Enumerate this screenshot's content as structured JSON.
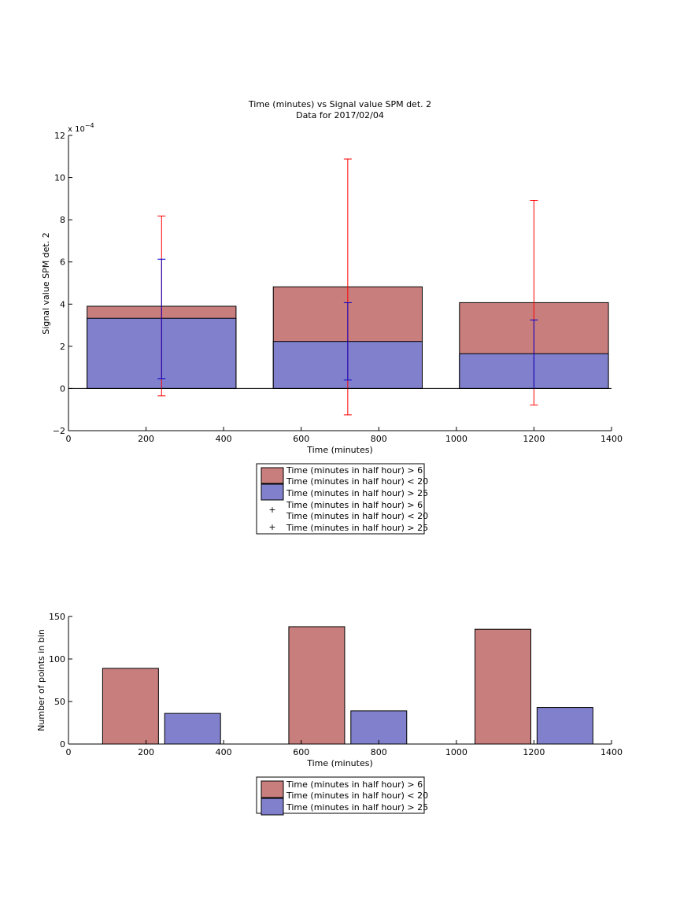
{
  "colors": {
    "red_fill": "#c97e7e",
    "blue_fill": "#8080cc",
    "red_err": "#ff0000",
    "blue_err": "#0000cc",
    "axis": "#000000"
  },
  "chart_data": [
    {
      "type": "bar",
      "title": "Time (minutes) vs Signal value SPM det. 2",
      "subtitle": "Data for 2017/02/04",
      "xlabel": "Time (minutes)",
      "ylabel": "Signal value SPM det. 2",
      "y_exponent_label": "x 10",
      "y_exponent_power": "−4",
      "xlim": [
        0,
        1400
      ],
      "ylim": [
        -2,
        12
      ],
      "xticks": [
        "0",
        "200",
        "400",
        "600",
        "800",
        "1000",
        "1200",
        "1400"
      ],
      "yticks": [
        "−2",
        "0",
        "2",
        "4",
        "6",
        "8",
        "10",
        "12"
      ],
      "bars": {
        "x_centers": [
          240,
          720,
          1200
        ],
        "half_width": 192,
        "series": [
          {
            "name": "Time (minutes in half hour) > 6\nTime (minutes in half hour) < 20",
            "values": [
              3.9,
              4.82,
              4.07
            ]
          },
          {
            "name": "Time (minutes in half hour) > 25",
            "values": [
              3.33,
              2.23,
              1.65
            ]
          }
        ]
      },
      "error_bars": [
        {
          "name": "Time (minutes in half hour) > 6\nTime (minutes in half hour) < 20",
          "x": [
            240,
            720,
            1200
          ],
          "y": [
            3.9,
            4.82,
            4.07
          ],
          "low": [
            -0.35,
            -1.25,
            -0.78
          ],
          "high": [
            8.18,
            10.88,
            8.92
          ]
        },
        {
          "name": "Time (minutes in half hour) > 25",
          "x": [
            240,
            720,
            1200
          ],
          "y": [
            3.33,
            2.23,
            1.65
          ],
          "low": [
            0.47,
            0.4,
            0.0
          ],
          "high": [
            6.13,
            4.07,
            3.25
          ]
        }
      ],
      "legend": {
        "placement": "below",
        "entries": [
          "Time (minutes in half hour) > 6",
          "Time (minutes in half hour) < 20",
          "Time (minutes in half hour) > 25",
          "Time (minutes in half hour) > 6",
          "Time (minutes in half hour) < 20",
          "Time (minutes in half hour) > 25"
        ]
      }
    },
    {
      "type": "bar",
      "xlabel": "Time (minutes)",
      "ylabel": "Number of points in bin",
      "xlim": [
        0,
        1400
      ],
      "ylim": [
        0,
        150
      ],
      "xticks": [
        "0",
        "200",
        "400",
        "600",
        "800",
        "1000",
        "1200",
        "1400"
      ],
      "yticks": [
        "0",
        "50",
        "100",
        "150"
      ],
      "bars": {
        "half_width": 72,
        "series": [
          {
            "name": "Time (minutes in half hour) > 6\nTime (minutes in half hour) < 20",
            "x_centers": [
              160,
              640,
              1120
            ],
            "values": [
              89,
              138,
              135
            ]
          },
          {
            "name": "Time (minutes in half hour) > 25",
            "x_centers": [
              320,
              800,
              1280
            ],
            "values": [
              36,
              39,
              43
            ]
          }
        ]
      },
      "legend": {
        "placement": "below",
        "entries": [
          "Time (minutes in half hour) > 6",
          "Time (minutes in half hour) < 20",
          "Time (minutes in half hour) > 25"
        ]
      }
    }
  ]
}
